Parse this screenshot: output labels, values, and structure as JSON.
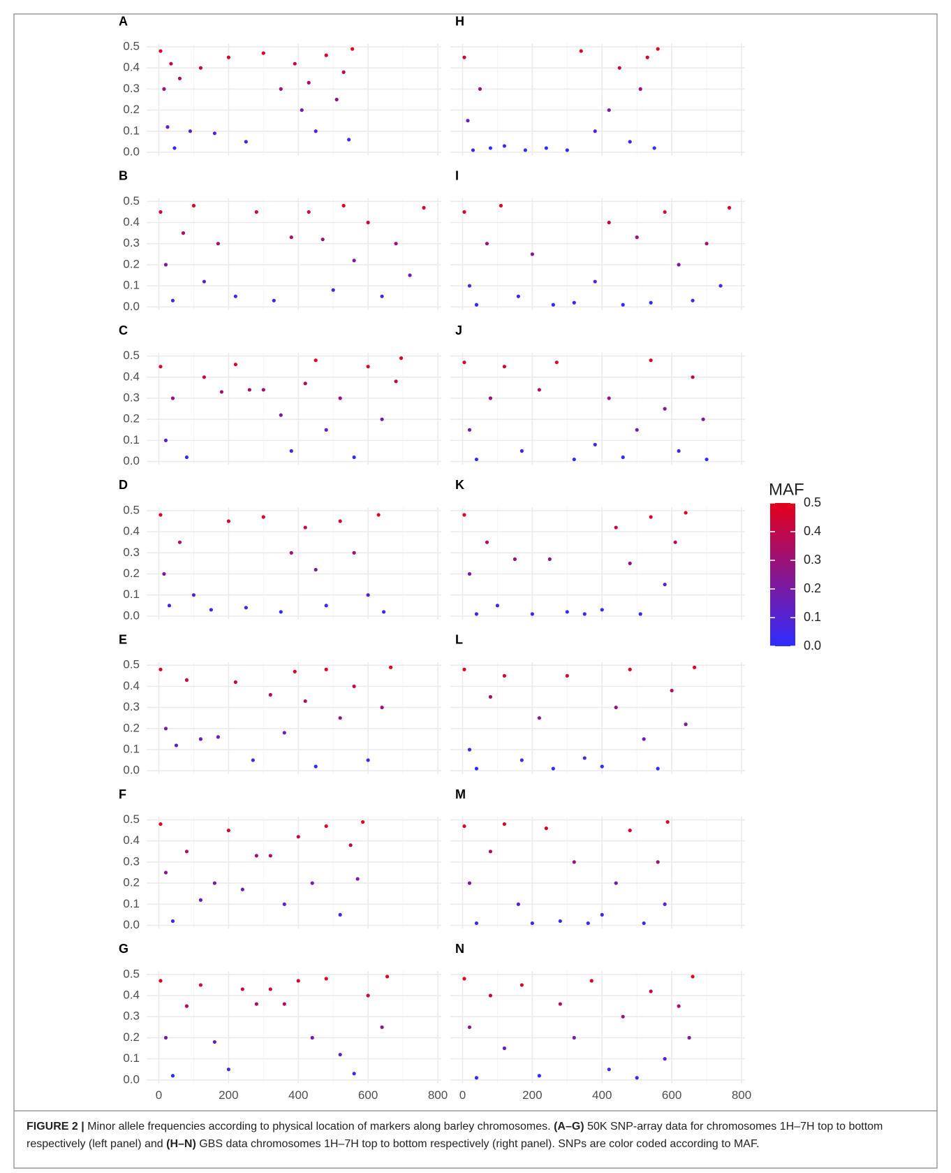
{
  "chart_data": [
    {
      "type": "scatter",
      "title": "A",
      "x": [
        5,
        15,
        25,
        35,
        45,
        60,
        90,
        120,
        160,
        200,
        250,
        300,
        350,
        390,
        410,
        430,
        450,
        480,
        510,
        530,
        545,
        555
      ],
      "y": [
        0.48,
        0.3,
        0.12,
        0.42,
        0.02,
        0.35,
        0.1,
        0.4,
        0.09,
        0.45,
        0.05,
        0.47,
        0.3,
        0.42,
        0.2,
        0.33,
        0.1,
        0.46,
        0.25,
        0.38,
        0.06,
        0.49
      ],
      "xlim": [
        -35,
        810
      ],
      "ylim": [
        -0.015,
        0.515
      ],
      "xticks": [
        0,
        200,
        400,
        600,
        800
      ],
      "yticks": [
        {
          "value": 0,
          "label": "0.0"
        },
        0.1,
        0.2,
        0.3,
        0.4,
        0.5
      ],
      "grid": true
    },
    {
      "type": "scatter",
      "title": "B",
      "x": [
        5,
        20,
        40,
        70,
        100,
        130,
        170,
        220,
        280,
        330,
        380,
        430,
        470,
        500,
        530,
        560,
        600,
        640,
        680,
        720,
        760
      ],
      "y": [
        0.45,
        0.2,
        0.03,
        0.35,
        0.48,
        0.12,
        0.3,
        0.05,
        0.45,
        0.03,
        0.33,
        0.45,
        0.32,
        0.08,
        0.48,
        0.22,
        0.4,
        0.05,
        0.3,
        0.15,
        0.47
      ],
      "xlim": [
        -35,
        810
      ],
      "ylim": [
        -0.015,
        0.515
      ],
      "xticks": [
        0,
        200,
        400,
        600,
        800
      ],
      "yticks": [
        {
          "value": 0,
          "label": "0.0"
        },
        0.1,
        0.2,
        0.3,
        0.4,
        0.5
      ],
      "grid": true
    },
    {
      "type": "scatter",
      "title": "C",
      "x": [
        5,
        20,
        40,
        80,
        130,
        180,
        220,
        260,
        300,
        350,
        380,
        420,
        450,
        480,
        520,
        560,
        600,
        640,
        680,
        695
      ],
      "y": [
        0.45,
        0.1,
        0.3,
        0.02,
        0.4,
        0.33,
        0.46,
        0.34,
        0.34,
        0.22,
        0.05,
        0.37,
        0.48,
        0.15,
        0.3,
        0.02,
        0.45,
        0.2,
        0.38,
        0.49
      ],
      "xlim": [
        -35,
        810
      ],
      "ylim": [
        -0.015,
        0.515
      ],
      "xticks": [
        0,
        200,
        400,
        600,
        800
      ],
      "yticks": [
        {
          "value": 0,
          "label": "0.0"
        },
        0.1,
        0.2,
        0.3,
        0.4,
        0.5
      ],
      "grid": true
    },
    {
      "type": "scatter",
      "title": "D",
      "x": [
        5,
        15,
        30,
        60,
        100,
        150,
        200,
        250,
        300,
        350,
        380,
        420,
        450,
        480,
        520,
        560,
        600,
        630,
        645
      ],
      "y": [
        0.48,
        0.2,
        0.05,
        0.35,
        0.1,
        0.03,
        0.45,
        0.04,
        0.47,
        0.02,
        0.3,
        0.42,
        0.22,
        0.05,
        0.45,
        0.3,
        0.1,
        0.48,
        0.02
      ],
      "xlim": [
        -35,
        810
      ],
      "ylim": [
        -0.015,
        0.515
      ],
      "xticks": [
        0,
        200,
        400,
        600,
        800
      ],
      "yticks": [
        {
          "value": 0,
          "label": "0.0"
        },
        0.1,
        0.2,
        0.3,
        0.4,
        0.5
      ],
      "grid": true
    },
    {
      "type": "scatter",
      "title": "E",
      "x": [
        5,
        20,
        50,
        80,
        120,
        170,
        220,
        270,
        320,
        360,
        390,
        420,
        450,
        480,
        520,
        560,
        600,
        640,
        665
      ],
      "y": [
        0.48,
        0.2,
        0.12,
        0.43,
        0.15,
        0.16,
        0.42,
        0.05,
        0.36,
        0.18,
        0.47,
        0.33,
        0.02,
        0.48,
        0.25,
        0.4,
        0.05,
        0.3,
        0.49
      ],
      "xlim": [
        -35,
        810
      ],
      "ylim": [
        -0.015,
        0.515
      ],
      "xticks": [
        0,
        200,
        400,
        600,
        800
      ],
      "yticks": [
        {
          "value": 0,
          "label": "0.0"
        },
        0.1,
        0.2,
        0.3,
        0.4,
        0.5
      ],
      "grid": true
    },
    {
      "type": "scatter",
      "title": "F",
      "x": [
        5,
        20,
        40,
        80,
        120,
        160,
        200,
        240,
        280,
        320,
        360,
        400,
        440,
        480,
        520,
        550,
        570,
        585
      ],
      "y": [
        0.48,
        0.25,
        0.02,
        0.35,
        0.12,
        0.2,
        0.45,
        0.17,
        0.33,
        0.33,
        0.1,
        0.42,
        0.2,
        0.47,
        0.05,
        0.38,
        0.22,
        0.49
      ],
      "xlim": [
        -35,
        810
      ],
      "ylim": [
        -0.015,
        0.515
      ],
      "xticks": [
        0,
        200,
        400,
        600,
        800
      ],
      "yticks": [
        {
          "value": 0,
          "label": "0.0"
        },
        0.1,
        0.2,
        0.3,
        0.4,
        0.5
      ],
      "grid": true
    },
    {
      "type": "scatter",
      "title": "G",
      "x": [
        5,
        20,
        40,
        80,
        120,
        160,
        200,
        240,
        280,
        320,
        360,
        400,
        440,
        480,
        520,
        560,
        600,
        640,
        655
      ],
      "y": [
        0.47,
        0.2,
        0.02,
        0.35,
        0.45,
        0.18,
        0.05,
        0.43,
        0.36,
        0.43,
        0.36,
        0.47,
        0.2,
        0.48,
        0.12,
        0.03,
        0.4,
        0.25,
        0.49
      ],
      "xlim": [
        -35,
        810
      ],
      "ylim": [
        -0.015,
        0.515
      ],
      "xticks": [
        0,
        200,
        400,
        600,
        800
      ],
      "yticks": [
        {
          "value": 0,
          "label": "0.0"
        },
        0.1,
        0.2,
        0.3,
        0.4,
        0.5
      ],
      "grid": true
    },
    {
      "type": "scatter",
      "title": "H",
      "x": [
        5,
        15,
        30,
        50,
        80,
        120,
        180,
        240,
        300,
        340,
        380,
        420,
        450,
        480,
        510,
        530,
        550,
        560
      ],
      "y": [
        0.45,
        0.15,
        0.01,
        0.3,
        0.02,
        0.03,
        0.01,
        0.02,
        0.01,
        0.48,
        0.1,
        0.2,
        0.4,
        0.05,
        0.3,
        0.45,
        0.02,
        0.49
      ],
      "xlim": [
        -35,
        810
      ],
      "ylim": [
        -0.015,
        0.515
      ],
      "xticks": [
        0,
        200,
        400,
        600,
        800
      ],
      "yticks": [
        {
          "value": 0,
          "label": "0.0"
        },
        0.1,
        0.2,
        0.3,
        0.4,
        0.5
      ],
      "grid": true
    },
    {
      "type": "scatter",
      "title": "I",
      "x": [
        5,
        20,
        40,
        70,
        110,
        160,
        200,
        260,
        320,
        380,
        420,
        460,
        500,
        540,
        580,
        620,
        660,
        700,
        740,
        765
      ],
      "y": [
        0.45,
        0.1,
        0.01,
        0.3,
        0.48,
        0.05,
        0.25,
        0.01,
        0.02,
        0.12,
        0.4,
        0.01,
        0.33,
        0.02,
        0.45,
        0.2,
        0.03,
        0.3,
        0.1,
        0.47
      ],
      "xlim": [
        -35,
        810
      ],
      "ylim": [
        -0.015,
        0.515
      ],
      "xticks": [
        0,
        200,
        400,
        600,
        800
      ],
      "yticks": [
        {
          "value": 0,
          "label": "0.0"
        },
        0.1,
        0.2,
        0.3,
        0.4,
        0.5
      ],
      "grid": true
    },
    {
      "type": "scatter",
      "title": "J",
      "x": [
        5,
        20,
        40,
        80,
        120,
        170,
        220,
        270,
        320,
        380,
        420,
        460,
        500,
        540,
        580,
        620,
        660,
        690,
        700
      ],
      "y": [
        0.47,
        0.15,
        0.01,
        0.3,
        0.45,
        0.05,
        0.34,
        0.47,
        0.01,
        0.08,
        0.3,
        0.02,
        0.15,
        0.48,
        0.25,
        0.05,
        0.4,
        0.2,
        0.01
      ],
      "xlim": [
        -35,
        810
      ],
      "ylim": [
        -0.015,
        0.515
      ],
      "xticks": [
        0,
        200,
        400,
        600,
        800
      ],
      "yticks": [
        {
          "value": 0,
          "label": "0.0"
        },
        0.1,
        0.2,
        0.3,
        0.4,
        0.5
      ],
      "grid": true
    },
    {
      "type": "scatter",
      "title": "K",
      "x": [
        5,
        20,
        40,
        70,
        100,
        150,
        200,
        250,
        300,
        350,
        400,
        440,
        480,
        510,
        540,
        580,
        610,
        640
      ],
      "y": [
        0.48,
        0.2,
        0.01,
        0.35,
        0.05,
        0.27,
        0.01,
        0.27,
        0.02,
        0.01,
        0.03,
        0.42,
        0.25,
        0.01,
        0.47,
        0.15,
        0.35,
        0.49
      ],
      "xlim": [
        -35,
        810
      ],
      "ylim": [
        -0.015,
        0.515
      ],
      "xticks": [
        0,
        200,
        400,
        600,
        800
      ],
      "yticks": [
        {
          "value": 0,
          "label": "0.0"
        },
        0.1,
        0.2,
        0.3,
        0.4,
        0.5
      ],
      "grid": true
    },
    {
      "type": "scatter",
      "title": "L",
      "x": [
        5,
        20,
        40,
        80,
        120,
        170,
        220,
        260,
        300,
        350,
        400,
        440,
        480,
        520,
        560,
        600,
        640,
        665
      ],
      "y": [
        0.48,
        0.1,
        0.01,
        0.35,
        0.45,
        0.05,
        0.25,
        0.01,
        0.45,
        0.06,
        0.02,
        0.3,
        0.48,
        0.15,
        0.01,
        0.38,
        0.22,
        0.49
      ],
      "xlim": [
        -35,
        810
      ],
      "ylim": [
        -0.015,
        0.515
      ],
      "xticks": [
        0,
        200,
        400,
        600,
        800
      ],
      "yticks": [
        {
          "value": 0,
          "label": "0.0"
        },
        0.1,
        0.2,
        0.3,
        0.4,
        0.5
      ],
      "grid": true
    },
    {
      "type": "scatter",
      "title": "M",
      "x": [
        5,
        20,
        40,
        80,
        120,
        160,
        200,
        240,
        280,
        320,
        360,
        400,
        440,
        480,
        520,
        560,
        580,
        588
      ],
      "y": [
        0.47,
        0.2,
        0.01,
        0.35,
        0.48,
        0.1,
        0.01,
        0.46,
        0.02,
        0.3,
        0.01,
        0.05,
        0.2,
        0.45,
        0.01,
        0.3,
        0.1,
        0.49
      ],
      "xlim": [
        -35,
        810
      ],
      "ylim": [
        -0.015,
        0.515
      ],
      "xticks": [
        0,
        200,
        400,
        600,
        800
      ],
      "yticks": [
        {
          "value": 0,
          "label": "0.0"
        },
        0.1,
        0.2,
        0.3,
        0.4,
        0.5
      ],
      "grid": true
    },
    {
      "type": "scatter",
      "title": "N",
      "x": [
        5,
        20,
        40,
        80,
        120,
        170,
        220,
        280,
        320,
        370,
        420,
        460,
        500,
        540,
        580,
        620,
        650,
        660
      ],
      "y": [
        0.48,
        0.25,
        0.01,
        0.4,
        0.15,
        0.45,
        0.02,
        0.36,
        0.2,
        0.47,
        0.05,
        0.3,
        0.01,
        0.42,
        0.1,
        0.35,
        0.2,
        0.49
      ],
      "xlim": [
        -35,
        810
      ],
      "ylim": [
        -0.015,
        0.515
      ],
      "xticks": [
        0,
        200,
        400,
        600,
        800
      ],
      "yticks": [
        {
          "value": 0,
          "label": "0.0"
        },
        0.1,
        0.2,
        0.3,
        0.4,
        0.5
      ],
      "grid": true
    }
  ],
  "colorbar": {
    "title": "MAF",
    "lim": [
      0,
      0.5
    ],
    "colors": [
      "#2f2cff",
      "#e4001b"
    ],
    "ticks": [
      {
        "value": 0,
        "label": "0.0"
      },
      0.1,
      0.2,
      0.3,
      0.4,
      0.5
    ]
  },
  "caption": [
    {
      "text": "FIGURE 2 |",
      "bold": true
    },
    {
      "text": "Minor allele frequencies according to physical location of markers along barley chromosomes.",
      "bold": false
    },
    {
      "text": "(A–G)",
      "bold": true
    },
    {
      "text": "50K SNP-array data for chromosomes 1H–7H top to bottom respectively (left panel) and",
      "bold": false
    },
    {
      "text": "(H–N)",
      "bold": true
    },
    {
      "text": "GBS data chromosomes 1H–7H top to bottom respectively (right panel). SNPs are color coded according to MAF.",
      "bold": false
    }
  ]
}
